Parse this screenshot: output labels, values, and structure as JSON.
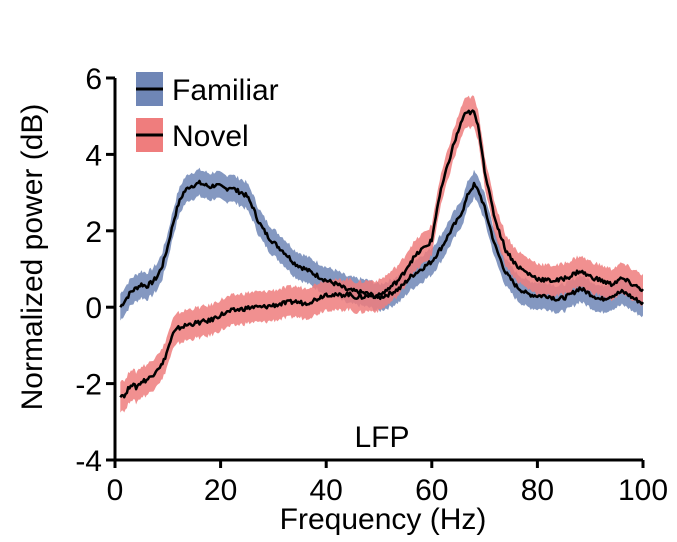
{
  "colors": {
    "familiar_band": "#6f86b6",
    "novel_band": "#ef7d7d",
    "mean_line": "#000000",
    "axis": "#000000"
  },
  "chart_data": {
    "type": "line",
    "title": "",
    "annotation": "LFP",
    "xlabel": "Frequency (Hz)",
    "ylabel": "Normalized power (dB)",
    "xlim": [
      0,
      100
    ],
    "ylim": [
      -4,
      6
    ],
    "xticks": [
      0,
      20,
      40,
      60,
      80,
      100
    ],
    "yticks": [
      -4,
      -2,
      0,
      2,
      4,
      6
    ],
    "xtick_labels": [
      "0",
      "20",
      "40",
      "60",
      "80",
      "100"
    ],
    "ytick_labels": [
      "-4",
      "-2",
      "0",
      "2",
      "4",
      "6"
    ],
    "legend_position": "top-left",
    "series": [
      {
        "name": "Familiar",
        "color_key": "familiar_band",
        "x": [
          1,
          2,
          3,
          4,
          5,
          6,
          7,
          8,
          9,
          10,
          11,
          12,
          13,
          14,
          15,
          16,
          17,
          18,
          19,
          20,
          21,
          22,
          23,
          24,
          25,
          26,
          27,
          28,
          29,
          30,
          32,
          34,
          36,
          38,
          40,
          42,
          44,
          46,
          48,
          50,
          52,
          54,
          56,
          58,
          60,
          62,
          64,
          65,
          66,
          67,
          68,
          69,
          70,
          71,
          72,
          74,
          76,
          78,
          80,
          82,
          84,
          86,
          88,
          90,
          92,
          94,
          96,
          97,
          98,
          100
        ],
        "values": [
          0.0,
          0.2,
          0.4,
          0.5,
          0.6,
          0.55,
          0.65,
          0.8,
          1.1,
          1.6,
          2.2,
          2.7,
          3.0,
          3.15,
          3.2,
          3.25,
          3.2,
          3.15,
          3.2,
          3.15,
          3.1,
          3.15,
          3.05,
          3.0,
          2.9,
          2.65,
          2.3,
          2.05,
          1.85,
          1.7,
          1.45,
          1.15,
          1.0,
          0.85,
          0.7,
          0.6,
          0.45,
          0.4,
          0.35,
          0.25,
          0.35,
          0.5,
          0.8,
          1.0,
          1.2,
          1.6,
          2.1,
          2.3,
          2.6,
          3.0,
          3.2,
          3.0,
          2.6,
          2.1,
          1.6,
          0.9,
          0.55,
          0.35,
          0.3,
          0.3,
          0.2,
          0.3,
          0.5,
          0.35,
          0.2,
          0.3,
          0.4,
          0.35,
          0.25,
          0.1
        ],
        "band_halfwidth": 0.35
      },
      {
        "name": "Novel",
        "color_key": "novel_band",
        "x": [
          1,
          2,
          3,
          4,
          5,
          6,
          7,
          8,
          9,
          10,
          11,
          12,
          14,
          16,
          18,
          20,
          22,
          24,
          26,
          28,
          30,
          32,
          34,
          36,
          38,
          40,
          42,
          44,
          46,
          48,
          50,
          52,
          54,
          56,
          58,
          59,
          60,
          61,
          62,
          63,
          64,
          65,
          66,
          67,
          68,
          69,
          70,
          71,
          72,
          74,
          76,
          78,
          80,
          82,
          84,
          86,
          88,
          90,
          92,
          94,
          96,
          98,
          100
        ],
        "values": [
          -2.3,
          -2.3,
          -2.0,
          -2.1,
          -1.95,
          -1.9,
          -1.8,
          -1.6,
          -1.5,
          -1.1,
          -0.7,
          -0.55,
          -0.45,
          -0.4,
          -0.35,
          -0.2,
          -0.1,
          -0.05,
          0.0,
          0.0,
          0.05,
          0.1,
          0.15,
          0.1,
          0.2,
          0.35,
          0.3,
          0.35,
          0.25,
          0.3,
          0.3,
          0.5,
          0.75,
          1.2,
          1.5,
          1.6,
          1.75,
          2.6,
          3.2,
          3.7,
          4.2,
          4.6,
          5.0,
          5.1,
          5.1,
          4.6,
          3.6,
          2.9,
          2.3,
          1.5,
          1.1,
          0.9,
          0.75,
          0.7,
          0.7,
          0.8,
          0.95,
          0.8,
          0.7,
          0.6,
          0.75,
          0.6,
          0.45
        ],
        "band_halfwidth": 0.4
      }
    ]
  }
}
